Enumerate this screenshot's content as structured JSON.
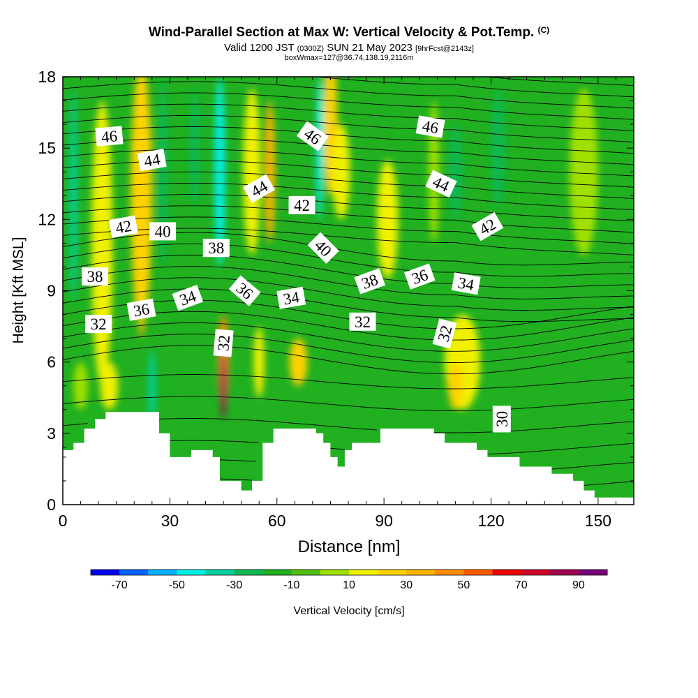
{
  "title": {
    "line1": "Wind-Parallel Section at Max W: Vertical Velocity & Pot.Temp.",
    "copyright": "(C)",
    "line2_a": "Valid 1200 JST",
    "line2_b": "(0300Z)",
    "line2_c": "SUN 21 May 2023",
    "line2_d": "[9hrFcst@2143z]",
    "line3": "boxWmax=127@36.74,138.19,2116m"
  },
  "colors": {
    "terrain": "#ffffff",
    "contour": "#000000",
    "background": "#ffffff"
  },
  "chart_data": {
    "type": "heatmap",
    "xlabel": "Distance [nm]",
    "ylabel": "Height [Kft MSL]",
    "xlim": [
      0,
      160
    ],
    "ylim": [
      0,
      18
    ],
    "x_ticks": [
      0,
      30,
      60,
      90,
      120,
      150
    ],
    "y_ticks": [
      0,
      3,
      6,
      9,
      12,
      15,
      18
    ],
    "colorbar": {
      "label": "Vertical Velocity [cm/s]",
      "tick_labels": [
        "-70",
        "-50",
        "-30",
        "-10",
        "10",
        "30",
        "50",
        "70",
        "90"
      ],
      "levels": [
        -70,
        -60,
        -50,
        -40,
        -30,
        -20,
        -10,
        0,
        10,
        20,
        30,
        40,
        50,
        60,
        70,
        80,
        90,
        100
      ],
      "colors": [
        "#0000f0",
        "#0064ff",
        "#00b4ff",
        "#00f0e6",
        "#00d0a0",
        "#10b850",
        "#20b020",
        "#50c010",
        "#a0e000",
        "#f0f000",
        "#ffd200",
        "#ffb400",
        "#ff8c00",
        "#ff5a00",
        "#f00000",
        "#d20028",
        "#a00050",
        "#780078"
      ]
    },
    "vertical_velocity_features": [
      {
        "x": 3,
        "y": 13,
        "w": 2,
        "h": 9,
        "value": -30
      },
      {
        "x": 11,
        "y": 11,
        "w": 6,
        "h": 12,
        "value": 25
      },
      {
        "x": 22,
        "y": 11,
        "w": 3,
        "h": 8,
        "value": 40
      },
      {
        "x": 22,
        "y": 13,
        "w": 6,
        "h": 11,
        "value": 30
      },
      {
        "x": 28,
        "y": 14,
        "w": 3,
        "h": 8,
        "value": -20
      },
      {
        "x": 25,
        "y": 5,
        "w": 2,
        "h": 3,
        "value": -30
      },
      {
        "x": 5,
        "y": 5,
        "w": 4,
        "h": 2,
        "value": 15
      },
      {
        "x": 13,
        "y": 5,
        "w": 5,
        "h": 2,
        "value": 20
      },
      {
        "x": 37,
        "y": 15,
        "w": 3,
        "h": 5,
        "value": -20
      },
      {
        "x": 44,
        "y": 14,
        "w": 3,
        "h": 8,
        "value": -35
      },
      {
        "x": 53,
        "y": 14,
        "w": 5,
        "h": 7,
        "value": 25
      },
      {
        "x": 58,
        "y": 14,
        "w": 3,
        "h": 6,
        "value": 40
      },
      {
        "x": 45,
        "y": 6,
        "w": 3,
        "h": 4,
        "value": 55
      },
      {
        "x": 45,
        "y": 5,
        "w": 1.6,
        "h": 2.8,
        "value": 90
      },
      {
        "x": 55,
        "y": 6,
        "w": 3,
        "h": 3,
        "value": 20
      },
      {
        "x": 66,
        "y": 6,
        "w": 5,
        "h": 2,
        "value": 35
      },
      {
        "x": 72,
        "y": 15,
        "w": 2,
        "h": 6,
        "value": -35
      },
      {
        "x": 75,
        "y": 16,
        "w": 4,
        "h": 6,
        "value": 30
      },
      {
        "x": 78,
        "y": 14,
        "w": 5,
        "h": 4,
        "value": 20
      },
      {
        "x": 91,
        "y": 12,
        "w": 6,
        "h": 5,
        "value": 20
      },
      {
        "x": 104,
        "y": 14,
        "w": 3,
        "h": 6,
        "value": 15
      },
      {
        "x": 110,
        "y": 14,
        "w": 4,
        "h": 4,
        "value": -20
      },
      {
        "x": 112,
        "y": 6,
        "w": 10,
        "h": 4,
        "value": 20
      },
      {
        "x": 110,
        "y": 5,
        "w": 4,
        "h": 2,
        "value": 35
      },
      {
        "x": 122,
        "y": 15,
        "w": 4,
        "h": 5,
        "value": -15
      },
      {
        "x": 150,
        "y": 4,
        "w": 6,
        "h": 4,
        "value": -10
      },
      {
        "x": 146,
        "y": 14,
        "w": 8,
        "h": 7,
        "value": 10
      }
    ],
    "terrain_top_kft": [
      [
        0,
        2.3
      ],
      [
        3,
        2.6
      ],
      [
        6,
        3.2
      ],
      [
        9,
        3.6
      ],
      [
        12,
        3.9
      ],
      [
        15,
        3.9
      ],
      [
        18,
        3.9
      ],
      [
        21,
        3.9
      ],
      [
        24,
        3.9
      ],
      [
        27,
        3.0
      ],
      [
        30,
        2.0
      ],
      [
        33,
        2.0
      ],
      [
        36,
        2.3
      ],
      [
        39,
        2.3
      ],
      [
        42,
        2.0
      ],
      [
        44,
        1.0
      ],
      [
        47,
        1.0
      ],
      [
        50,
        0.6
      ],
      [
        53,
        1.0
      ],
      [
        56,
        2.6
      ],
      [
        59,
        3.2
      ],
      [
        62,
        3.2
      ],
      [
        65,
        3.2
      ],
      [
        68,
        3.2
      ],
      [
        71,
        3.0
      ],
      [
        73,
        2.6
      ],
      [
        75,
        2.0
      ],
      [
        77,
        1.6
      ],
      [
        79,
        2.3
      ],
      [
        81,
        2.6
      ],
      [
        83,
        2.6
      ],
      [
        86,
        2.6
      ],
      [
        89,
        3.2
      ],
      [
        92,
        3.2
      ],
      [
        95,
        3.2
      ],
      [
        98,
        3.2
      ],
      [
        101,
        3.2
      ],
      [
        104,
        3.0
      ],
      [
        107,
        2.6
      ],
      [
        110,
        2.6
      ],
      [
        113,
        2.6
      ],
      [
        116,
        2.3
      ],
      [
        119,
        2.0
      ],
      [
        122,
        2.0
      ],
      [
        125,
        2.0
      ],
      [
        128,
        1.6
      ],
      [
        131,
        1.6
      ],
      [
        134,
        1.6
      ],
      [
        137,
        1.3
      ],
      [
        140,
        1.3
      ],
      [
        143,
        1.0
      ],
      [
        146,
        0.6
      ],
      [
        149,
        0.3
      ],
      [
        152,
        0.3
      ],
      [
        155,
        0.3
      ],
      [
        158,
        0.3
      ],
      [
        160,
        0.3
      ]
    ],
    "theta_contours": [
      {
        "value": 30,
        "label": "30"
      },
      {
        "value": 32,
        "label": "32"
      },
      {
        "value": 34,
        "label": "34"
      },
      {
        "value": 36,
        "label": "36"
      },
      {
        "value": 38,
        "label": "38"
      },
      {
        "value": 40,
        "label": "40"
      },
      {
        "value": 42,
        "label": "42"
      },
      {
        "value": 44,
        "label": "44"
      },
      {
        "value": 46,
        "label": "46"
      }
    ],
    "contour_labels": [
      {
        "text": "46",
        "x": 13,
        "y": 15.5,
        "rot": -5
      },
      {
        "text": "46",
        "x": 70,
        "y": 15.5,
        "rot": 35
      },
      {
        "text": "46",
        "x": 103,
        "y": 15.9,
        "rot": 10
      },
      {
        "text": "44",
        "x": 25,
        "y": 14.5,
        "rot": -10
      },
      {
        "text": "44",
        "x": 55,
        "y": 13.3,
        "rot": -30
      },
      {
        "text": "44",
        "x": 106,
        "y": 13.5,
        "rot": 25
      },
      {
        "text": "42",
        "x": 17,
        "y": 11.7,
        "rot": -10
      },
      {
        "text": "42",
        "x": 67,
        "y": 12.6,
        "rot": 0
      },
      {
        "text": "42",
        "x": 119,
        "y": 11.7,
        "rot": -30
      },
      {
        "text": "40",
        "x": 28,
        "y": 11.5,
        "rot": 0
      },
      {
        "text": "40",
        "x": 73,
        "y": 10.8,
        "rot": 45
      },
      {
        "text": "38",
        "x": 9,
        "y": 9.6,
        "rot": 0
      },
      {
        "text": "38",
        "x": 43,
        "y": 10.8,
        "rot": 0
      },
      {
        "text": "38",
        "x": 86,
        "y": 9.4,
        "rot": -20
      },
      {
        "text": "36",
        "x": 22,
        "y": 8.2,
        "rot": -10
      },
      {
        "text": "36",
        "x": 51,
        "y": 9.0,
        "rot": 40
      },
      {
        "text": "36",
        "x": 100,
        "y": 9.6,
        "rot": -20
      },
      {
        "text": "34",
        "x": 35,
        "y": 8.7,
        "rot": -20
      },
      {
        "text": "34",
        "x": 64,
        "y": 8.7,
        "rot": -10
      },
      {
        "text": "34",
        "x": 113,
        "y": 9.3,
        "rot": 10
      },
      {
        "text": "32",
        "x": 10,
        "y": 7.6,
        "rot": 0
      },
      {
        "text": "32",
        "x": 45,
        "y": 6.8,
        "rot": -85
      },
      {
        "text": "32",
        "x": 84,
        "y": 7.7,
        "rot": 0
      },
      {
        "text": "32",
        "x": 107,
        "y": 7.2,
        "rot": -75
      },
      {
        "text": "30",
        "x": 123,
        "y": 3.6,
        "rot": -90
      }
    ]
  }
}
